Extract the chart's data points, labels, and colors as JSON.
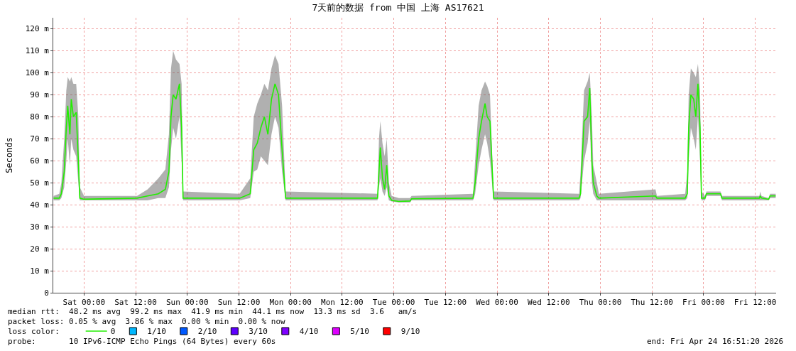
{
  "chart_data": {
    "type": "line",
    "title": "7天前的数据 from 中国 上海 AS17621",
    "ylabel": "Seconds",
    "x": [
      "2026-04-17T16:56",
      "2026-04-17T18:15",
      "2026-04-17T18:44",
      "2026-04-17T19:24",
      "2026-04-17T19:53",
      "2026-04-17T20:13",
      "2026-04-17T20:43",
      "2026-04-17T21:02",
      "2026-04-17T21:32",
      "2026-04-17T22:11",
      "2026-04-17T22:41",
      "2026-04-17T23:01",
      "2026-04-18T00:00",
      "2026-04-18T12:20",
      "2026-04-18T14:47",
      "2026-04-18T17:16",
      "2026-04-18T18:54",
      "2026-04-18T19:44",
      "2026-04-18T20:13",
      "2026-04-18T20:43",
      "2026-04-18T21:22",
      "2026-04-18T22:11",
      "2026-04-18T22:41",
      "2026-04-18T23:01",
      "2026-04-19T12:10",
      "2026-04-19T14:38",
      "2026-04-19T15:27",
      "2026-04-19T16:16",
      "2026-04-19T17:06",
      "2026-04-19T17:55",
      "2026-04-19T18:44",
      "2026-04-19T19:34",
      "2026-04-19T20:23",
      "2026-04-19T21:12",
      "2026-04-19T22:02",
      "2026-04-19T22:51",
      "2026-04-20T20:13",
      "2026-04-20T20:33",
      "2026-04-20T20:52",
      "2026-04-20T21:22",
      "2026-04-20T21:52",
      "2026-04-20T22:21",
      "2026-04-20T22:51",
      "2026-04-20T23:30",
      "2026-04-21T01:09",
      "2026-04-21T03:47",
      "2026-04-21T04:07",
      "2026-04-21T18:25",
      "2026-04-21T18:54",
      "2026-04-21T19:43",
      "2026-04-21T20:23",
      "2026-04-21T21:12",
      "2026-04-21T21:42",
      "2026-04-21T22:21",
      "2026-04-21T23:11",
      "2026-04-22T19:04",
      "2026-04-22T19:24",
      "2026-04-22T20:13",
      "2026-04-22T21:02",
      "2026-04-22T21:32",
      "2026-04-22T22:02",
      "2026-04-22T22:21",
      "2026-04-22T23:11",
      "2026-04-22T23:40",
      "2026-04-23T12:49",
      "2026-04-23T13:09",
      "2026-04-23T19:43",
      "2026-04-23T20:13",
      "2026-04-23T20:32",
      "2026-04-23T21:02",
      "2026-04-23T21:42",
      "2026-04-23T22:11",
      "2026-04-23T22:41",
      "2026-04-23T23:10",
      "2026-04-23T23:30",
      "2026-04-24T00:19",
      "2026-04-24T00:39",
      "2026-04-24T03:56",
      "2026-04-24T04:16",
      "2026-04-24T12:59",
      "2026-04-24T13:08",
      "2026-04-24T13:28",
      "2026-04-24T15:07",
      "2026-04-24T15:27",
      "2026-04-24T16:45"
    ],
    "series": [
      {
        "name": "0",
        "color": "#22ee00",
        "values": [
          43,
          43,
          45,
          55,
          75,
          85,
          72,
          88,
          80,
          82,
          60,
          43,
          42.5,
          43,
          44,
          45,
          47,
          55,
          80,
          90,
          88,
          95,
          75,
          43,
          43,
          45,
          65,
          68,
          75,
          80,
          72,
          88,
          95,
          90,
          65,
          43,
          43,
          55,
          66,
          52,
          47,
          58,
          44,
          42,
          41.5,
          41.7,
          42.7,
          43,
          50,
          70,
          78,
          86,
          80,
          78,
          43,
          43,
          45,
          78,
          80,
          93,
          60,
          50,
          44,
          43,
          44,
          43,
          43,
          45,
          75,
          90,
          88,
          80,
          95,
          75,
          43,
          43,
          45,
          45,
          43,
          43,
          44,
          43,
          42.5,
          44,
          44
        ],
        "lower": [
          42,
          42,
          43,
          48,
          60,
          70,
          58,
          70,
          65,
          62,
          50,
          42,
          42,
          42,
          42,
          43,
          43,
          48,
          65,
          75,
          70,
          80,
          60,
          42,
          42,
          43,
          55,
          56,
          62,
          60,
          58,
          72,
          80,
          75,
          55,
          42,
          42,
          48,
          52,
          46,
          44,
          48,
          42,
          41.5,
          41,
          41,
          42,
          42,
          45,
          58,
          65,
          72,
          68,
          60,
          42,
          42,
          43,
          60,
          68,
          78,
          50,
          45,
          42,
          42,
          42,
          42,
          42,
          43,
          60,
          75,
          70,
          65,
          80,
          60,
          42,
          42,
          44,
          44,
          42,
          42,
          42,
          42,
          42,
          43,
          43
        ],
        "upper": [
          44,
          45,
          50,
          70,
          92,
          98,
          96,
          98,
          95,
          95,
          80,
          48,
          44,
          44,
          47,
          52,
          56,
          72,
          102,
          110,
          106,
          104,
          95,
          46,
          45,
          52,
          80,
          86,
          90,
          95,
          92,
          102,
          108,
          104,
          85,
          46,
          45,
          70,
          78,
          68,
          62,
          70,
          50,
          44,
          43,
          43,
          44,
          45,
          60,
          85,
          92,
          96,
          94,
          90,
          46,
          45,
          55,
          92,
          96,
          100,
          80,
          58,
          50,
          45,
          47,
          44,
          45,
          55,
          90,
          102,
          100,
          98,
          104,
          92,
          46,
          44,
          46,
          46,
          44,
          44,
          46,
          44,
          43,
          45,
          45
        ]
      },
      {
        "name": "1/10",
        "color": "#00b8ff",
        "values": [
          null,
          null,
          null,
          null,
          null,
          null,
          null,
          null,
          null,
          null,
          null,
          null,
          null,
          null,
          null,
          null,
          null,
          null,
          null,
          null,
          null,
          null,
          null,
          null,
          null,
          null,
          null,
          null,
          null,
          null,
          null,
          null,
          null,
          null,
          null,
          null,
          null,
          null,
          null,
          null,
          null,
          null,
          null,
          null,
          null,
          null,
          null,
          null,
          null,
          null,
          null,
          null,
          null,
          null,
          null,
          null,
          null,
          null,
          null,
          null,
          null,
          null,
          null,
          null,
          null,
          null,
          null,
          null,
          null,
          null,
          null,
          null,
          null,
          null,
          null,
          null,
          null,
          null,
          null,
          null,
          null,
          null,
          null,
          null,
          null
        ]
      },
      {
        "name": "2/10",
        "color": "#0059ff",
        "values": [
          null,
          null,
          null,
          null,
          null,
          null,
          null,
          null,
          null,
          null,
          null,
          null,
          null,
          null,
          null,
          null,
          null,
          null,
          null,
          null,
          null,
          null,
          null,
          null,
          null,
          null,
          null,
          null,
          null,
          null,
          null,
          null,
          null,
          null,
          null,
          null,
          null,
          null,
          null,
          null,
          null,
          null,
          null,
          null,
          null,
          null,
          null,
          null,
          null,
          null,
          null,
          null,
          null,
          null,
          null,
          null,
          null,
          null,
          null,
          null,
          null,
          null,
          null,
          null,
          null,
          null,
          null,
          null,
          null,
          null,
          null,
          null,
          null,
          null,
          null,
          null,
          null,
          null,
          null,
          null,
          null,
          null,
          null,
          null,
          null
        ]
      },
      {
        "name": "3/10",
        "color": "#5e00ff",
        "values": [
          null,
          null,
          null,
          null,
          null,
          null,
          null,
          null,
          null,
          null,
          null,
          null,
          null,
          null,
          null,
          null,
          null,
          null,
          null,
          null,
          null,
          null,
          null,
          null,
          null,
          null,
          null,
          null,
          null,
          null,
          null,
          null,
          null,
          null,
          null,
          null,
          null,
          null,
          null,
          null,
          null,
          null,
          null,
          null,
          null,
          null,
          null,
          null,
          null,
          null,
          null,
          null,
          null,
          null,
          null,
          null,
          null,
          null,
          null,
          null,
          null,
          null,
          null,
          null,
          null,
          null,
          null,
          null,
          null,
          null,
          null,
          null,
          null,
          null,
          null,
          null,
          null,
          null,
          null,
          null,
          null,
          null,
          null,
          null,
          null
        ]
      },
      {
        "name": "4/10",
        "color": "#7e00ff",
        "values": [
          null,
          null,
          null,
          null,
          null,
          null,
          null,
          null,
          null,
          null,
          null,
          null,
          null,
          null,
          null,
          null,
          null,
          null,
          null,
          null,
          null,
          null,
          null,
          null,
          null,
          null,
          null,
          null,
          null,
          null,
          null,
          null,
          null,
          null,
          null,
          null,
          null,
          null,
          null,
          null,
          null,
          null,
          null,
          null,
          null,
          null,
          null,
          null,
          null,
          null,
          null,
          null,
          null,
          null,
          null,
          null,
          null,
          null,
          null,
          null,
          null,
          null,
          null,
          null,
          null,
          null,
          null,
          null,
          null,
          null,
          null,
          null,
          null,
          null,
          null,
          null,
          null,
          null,
          null,
          null,
          null,
          null,
          null,
          null,
          null
        ]
      },
      {
        "name": "5/10",
        "color": "#dd00ff",
        "values": [
          null,
          null,
          null,
          null,
          null,
          null,
          null,
          null,
          null,
          null,
          null,
          null,
          null,
          null,
          null,
          null,
          null,
          null,
          null,
          null,
          null,
          null,
          null,
          null,
          null,
          null,
          null,
          null,
          null,
          null,
          null,
          null,
          null,
          null,
          null,
          null,
          null,
          null,
          null,
          null,
          null,
          null,
          null,
          null,
          null,
          null,
          null,
          null,
          null,
          null,
          null,
          null,
          null,
          null,
          null,
          null,
          null,
          null,
          null,
          null,
          null,
          null,
          null,
          null,
          null,
          null,
          null,
          null,
          null,
          null,
          null,
          null,
          null,
          null,
          null,
          null,
          null,
          null,
          null,
          null,
          null,
          null,
          null,
          null,
          null
        ]
      },
      {
        "name": "9/10",
        "color": "#ff0000",
        "values": [
          null,
          null,
          null,
          null,
          null,
          null,
          null,
          null,
          null,
          null,
          null,
          null,
          null,
          null,
          null,
          null,
          null,
          null,
          null,
          null,
          null,
          null,
          null,
          null,
          null,
          null,
          null,
          null,
          null,
          null,
          null,
          null,
          null,
          null,
          null,
          null,
          null,
          null,
          null,
          null,
          null,
          null,
          null,
          null,
          null,
          null,
          null,
          null,
          null,
          null,
          null,
          null,
          null,
          null,
          null,
          null,
          null,
          null,
          null,
          null,
          null,
          null,
          null,
          null,
          null,
          null,
          null,
          null,
          null,
          null,
          null,
          null,
          null,
          null,
          null,
          null,
          null,
          null,
          null,
          null,
          null,
          null,
          null,
          null,
          null
        ]
      }
    ],
    "xlim": [
      "2026-04-17T16:51",
      "2026-04-24T16:51"
    ],
    "xticks": [
      {
        "value": "2026-04-18T00:00",
        "label": "Sat 00:00"
      },
      {
        "value": "2026-04-18T12:00",
        "label": "Sat 12:00"
      },
      {
        "value": "2026-04-19T00:00",
        "label": "Sun 00:00"
      },
      {
        "value": "2026-04-19T12:00",
        "label": "Sun 12:00"
      },
      {
        "value": "2026-04-20T00:00",
        "label": "Mon 00:00"
      },
      {
        "value": "2026-04-20T12:00",
        "label": "Mon 12:00"
      },
      {
        "value": "2026-04-21T00:00",
        "label": "Tue 00:00"
      },
      {
        "value": "2026-04-21T12:00",
        "label": "Tue 12:00"
      },
      {
        "value": "2026-04-22T00:00",
        "label": "Wed 00:00"
      },
      {
        "value": "2026-04-22T12:00",
        "label": "Wed 12:00"
      },
      {
        "value": "2026-04-23T00:00",
        "label": "Thu 00:00"
      },
      {
        "value": "2026-04-23T12:00",
        "label": "Thu 12:00"
      },
      {
        "value": "2026-04-24T00:00",
        "label": "Fri 00:00"
      },
      {
        "value": "2026-04-24T12:00",
        "label": "Fri 12:00"
      }
    ],
    "ylim": [
      0,
      125
    ],
    "yticks": [
      0,
      {
        "value": 10,
        "label": "10 m"
      },
      {
        "value": 20,
        "label": "20 m"
      },
      {
        "value": 30,
        "label": "30 m"
      },
      {
        "value": 40,
        "label": "40 m"
      },
      {
        "value": 50,
        "label": "50 m"
      },
      {
        "value": 60,
        "label": "60 m"
      },
      {
        "value": 70,
        "label": "70 m"
      },
      {
        "value": 80,
        "label": "80 m"
      },
      {
        "value": 90,
        "label": "90 m"
      },
      {
        "value": 100,
        "label": "100 m"
      },
      {
        "value": 110,
        "label": "110 m"
      },
      {
        "value": 120,
        "label": "120 m"
      }
    ],
    "grid": true,
    "legend": "bottom left",
    "marker": "none",
    "line_style": "solid",
    "annotations": [
      "median rtt:  48.2 ms avg  99.2 ms max  41.9 ms min  44.1 ms now  13.3 ms sd  3.6   am/s",
      "packet loss: 0.05 % avg  3.86 % max  0.00 % min  0.00 % now",
      "loss color:",
      "probe:       10 IPv6-ICMP Echo Pings (64 Bytes) every 60s",
      "end: Fri Apr 24 16:51:20 2026"
    ]
  }
}
